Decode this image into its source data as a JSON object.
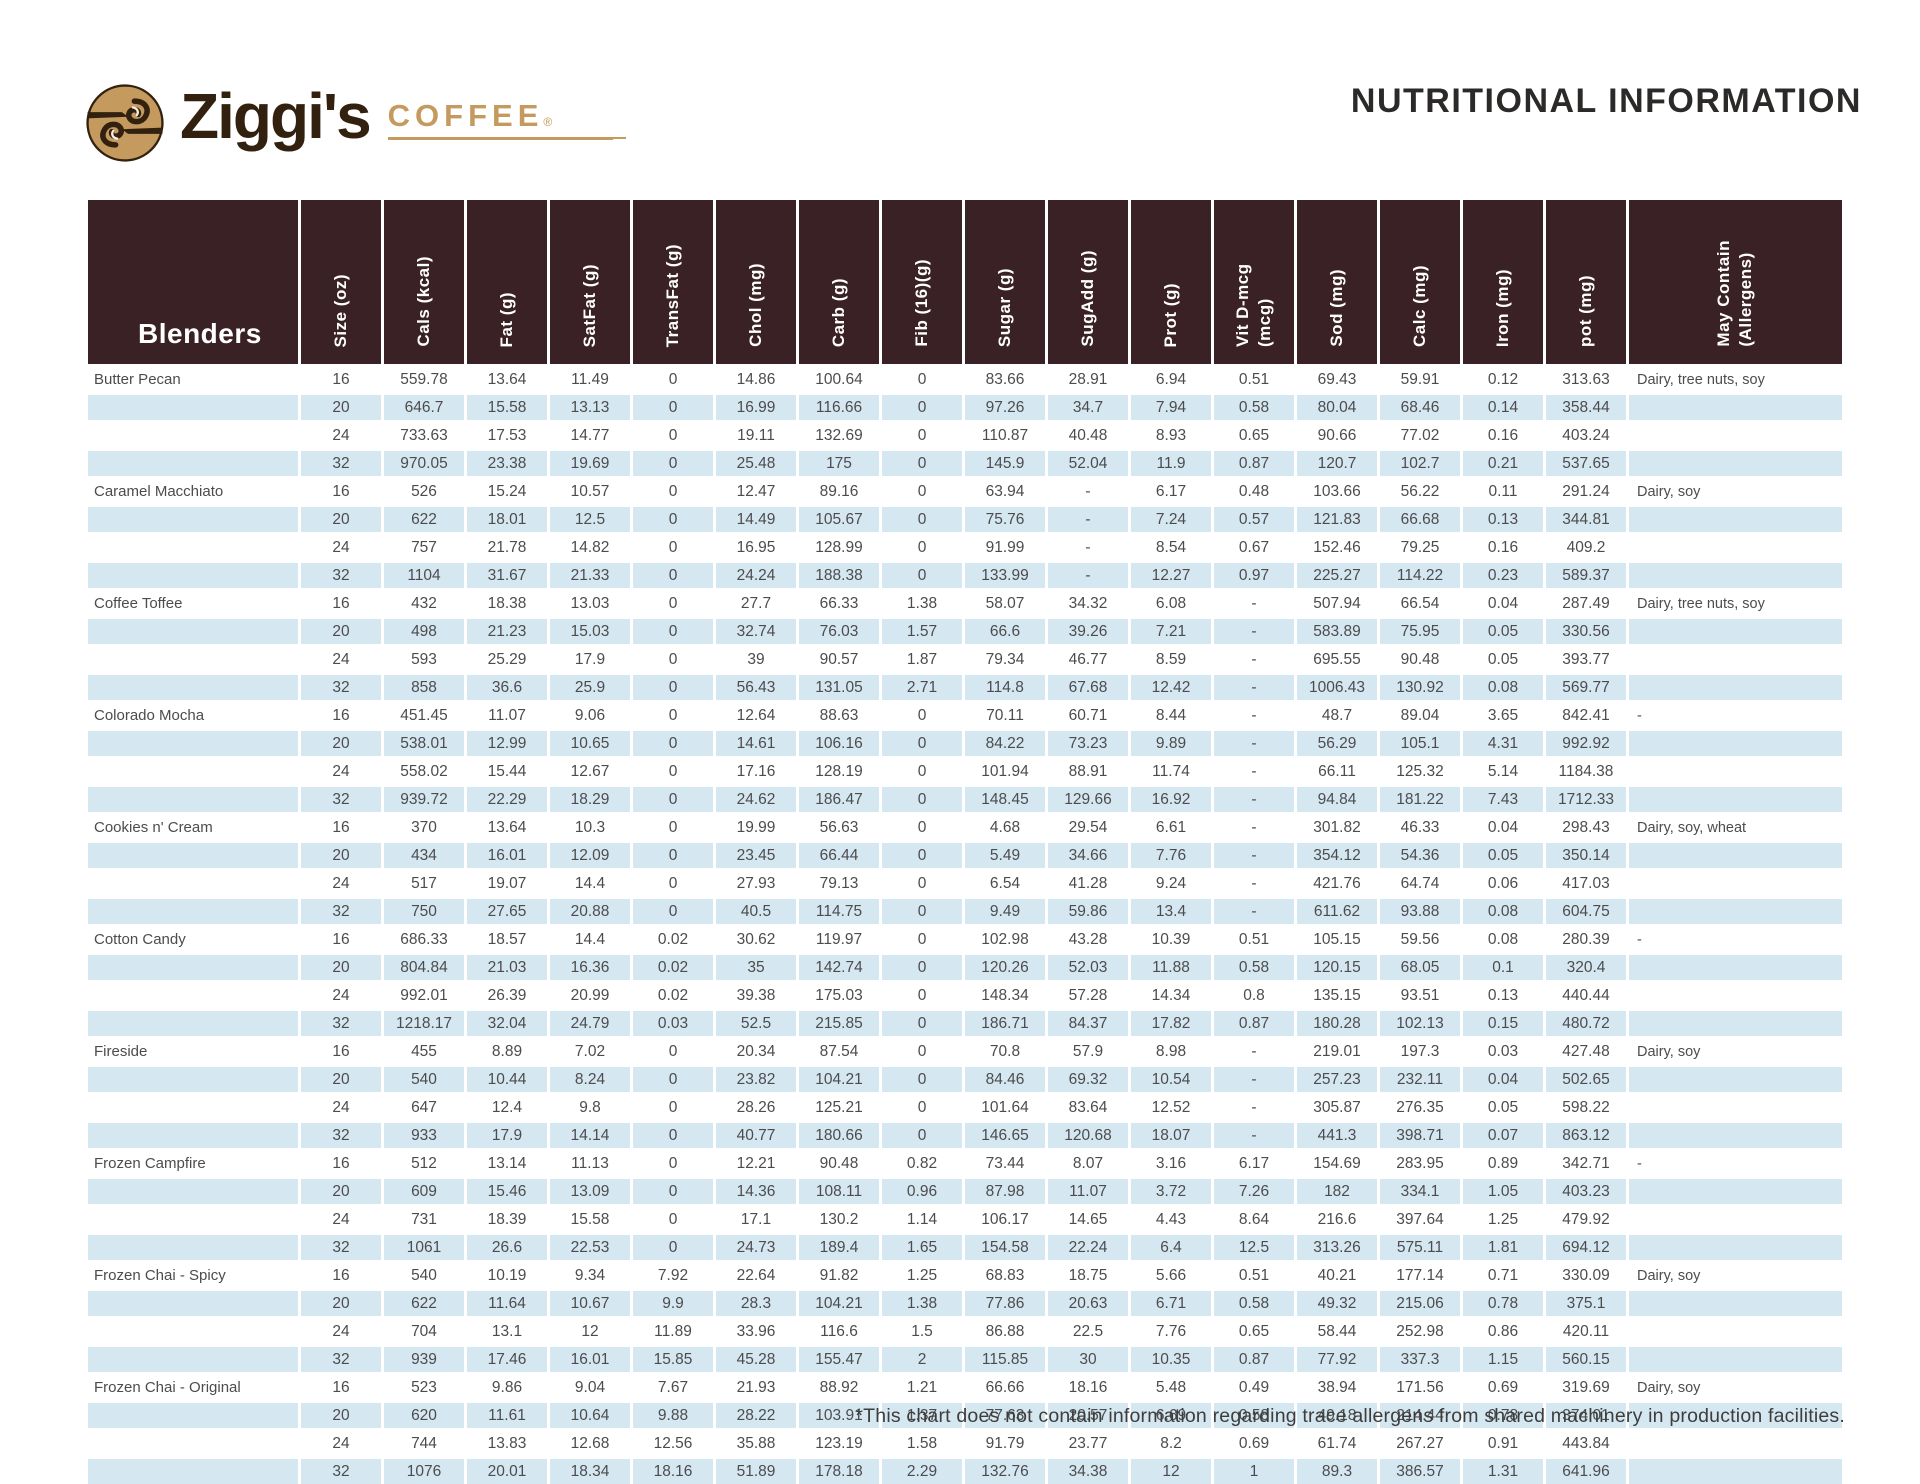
{
  "logo": {
    "brand": "Ziggi's",
    "sub": "COFFEE",
    "registered": "®"
  },
  "header": {
    "title": "NUTRITIONAL INFORMATION"
  },
  "colors": {
    "header_brown": "#3a2125",
    "row_blue": "#d5e7f0",
    "logo_gold": "#c49a5e",
    "logo_dark": "#33210f",
    "text_gray": "#4c4c4e"
  },
  "table": {
    "first_column_header": "Blenders",
    "columns": [
      "Size (oz)",
      "Cals (kcal)",
      "Fat (g)",
      "SatFat (g)",
      "TransFat (g)",
      "Chol (mg)",
      "Carb (g)",
      "Fib (16)(g)",
      "Sugar (g)",
      "SugAdd (g)",
      "Prot (g)",
      "Vit D-mcg (mcg)",
      "Sod (mg)",
      "Calc (mg)",
      "Iron (mg)",
      "pot (mg)",
      "May Contain\n(Allergens)"
    ],
    "products": [
      {
        "name": "Butter Pecan",
        "allergens": "Dairy, tree nuts, soy",
        "rows": [
          [
            "16",
            "559.78",
            "13.64",
            "11.49",
            "0",
            "14.86",
            "100.64",
            "0",
            "83.66",
            "28.91",
            "6.94",
            "0.51",
            "69.43",
            "59.91",
            "0.12",
            "313.63"
          ],
          [
            "20",
            "646.7",
            "15.58",
            "13.13",
            "0",
            "16.99",
            "116.66",
            "0",
            "97.26",
            "34.7",
            "7.94",
            "0.58",
            "80.04",
            "68.46",
            "0.14",
            "358.44"
          ],
          [
            "24",
            "733.63",
            "17.53",
            "14.77",
            "0",
            "19.11",
            "132.69",
            "0",
            "110.87",
            "40.48",
            "8.93",
            "0.65",
            "90.66",
            "77.02",
            "0.16",
            "403.24"
          ],
          [
            "32",
            "970.05",
            "23.38",
            "19.69",
            "0",
            "25.48",
            "175",
            "0",
            "145.9",
            "52.04",
            "11.9",
            "0.87",
            "120.7",
            "102.7",
            "0.21",
            "537.65"
          ]
        ]
      },
      {
        "name": "Caramel Macchiato",
        "allergens": "Dairy, soy",
        "rows": [
          [
            "16",
            "526",
            "15.24",
            "10.57",
            "0",
            "12.47",
            "89.16",
            "0",
            "63.94",
            "-",
            "6.17",
            "0.48",
            "103.66",
            "56.22",
            "0.11",
            "291.24"
          ],
          [
            "20",
            "622",
            "18.01",
            "12.5",
            "0",
            "14.49",
            "105.67",
            "0",
            "75.76",
            "-",
            "7.24",
            "0.57",
            "121.83",
            "66.68",
            "0.13",
            "344.81"
          ],
          [
            "24",
            "757",
            "21.78",
            "14.82",
            "0",
            "16.95",
            "128.99",
            "0",
            "91.99",
            "-",
            "8.54",
            "0.67",
            "152.46",
            "79.25",
            "0.16",
            "409.2"
          ],
          [
            "32",
            "1104",
            "31.67",
            "21.33",
            "0",
            "24.24",
            "188.38",
            "0",
            "133.99",
            "-",
            "12.27",
            "0.97",
            "225.27",
            "114.22",
            "0.23",
            "589.37"
          ]
        ]
      },
      {
        "name": "Coffee Toffee",
        "allergens": "Dairy, tree nuts, soy",
        "rows": [
          [
            "16",
            "432",
            "18.38",
            "13.03",
            "0",
            "27.7",
            "66.33",
            "1.38",
            "58.07",
            "34.32",
            "6.08",
            "-",
            "507.94",
            "66.54",
            "0.04",
            "287.49"
          ],
          [
            "20",
            "498",
            "21.23",
            "15.03",
            "0",
            "32.74",
            "76.03",
            "1.57",
            "66.6",
            "39.26",
            "7.21",
            "-",
            "583.89",
            "75.95",
            "0.05",
            "330.56"
          ],
          [
            "24",
            "593",
            "25.29",
            "17.9",
            "0",
            "39",
            "90.57",
            "1.87",
            "79.34",
            "46.77",
            "8.59",
            "-",
            "695.55",
            "90.48",
            "0.05",
            "393.77"
          ],
          [
            "32",
            "858",
            "36.6",
            "25.9",
            "0",
            "56.43",
            "131.05",
            "2.71",
            "114.8",
            "67.68",
            "12.42",
            "-",
            "1006.43",
            "130.92",
            "0.08",
            "569.77"
          ]
        ]
      },
      {
        "name": "Colorado Mocha",
        "allergens": "-",
        "rows": [
          [
            "16",
            "451.45",
            "11.07",
            "9.06",
            "0",
            "12.64",
            "88.63",
            "0",
            "70.11",
            "60.71",
            "8.44",
            "-",
            "48.7",
            "89.04",
            "3.65",
            "842.41"
          ],
          [
            "20",
            "538.01",
            "12.99",
            "10.65",
            "0",
            "14.61",
            "106.16",
            "0",
            "84.22",
            "73.23",
            "9.89",
            "-",
            "56.29",
            "105.1",
            "4.31",
            "992.92"
          ],
          [
            "24",
            "558.02",
            "15.44",
            "12.67",
            "0",
            "17.16",
            "128.19",
            "0",
            "101.94",
            "88.91",
            "11.74",
            "-",
            "66.11",
            "125.32",
            "5.14",
            "1184.38"
          ],
          [
            "32",
            "939.72",
            "22.29",
            "18.29",
            "0",
            "24.62",
            "186.47",
            "0",
            "148.45",
            "129.66",
            "16.92",
            "-",
            "94.84",
            "181.22",
            "7.43",
            "1712.33"
          ]
        ]
      },
      {
        "name": "Cookies n' Cream",
        "allergens": "Dairy, soy, wheat",
        "rows": [
          [
            "16",
            "370",
            "13.64",
            "10.3",
            "0",
            "19.99",
            "56.63",
            "0",
            "4.68",
            "29.54",
            "6.61",
            "-",
            "301.82",
            "46.33",
            "0.04",
            "298.43"
          ],
          [
            "20",
            "434",
            "16.01",
            "12.09",
            "0",
            "23.45",
            "66.44",
            "0",
            "5.49",
            "34.66",
            "7.76",
            "-",
            "354.12",
            "54.36",
            "0.05",
            "350.14"
          ],
          [
            "24",
            "517",
            "19.07",
            "14.4",
            "0",
            "27.93",
            "79.13",
            "0",
            "6.54",
            "41.28",
            "9.24",
            "-",
            "421.76",
            "64.74",
            "0.06",
            "417.03"
          ],
          [
            "32",
            "750",
            "27.65",
            "20.88",
            "0",
            "40.5",
            "114.75",
            "0",
            "9.49",
            "59.86",
            "13.4",
            "-",
            "611.62",
            "93.88",
            "0.08",
            "604.75"
          ]
        ]
      },
      {
        "name": "Cotton Candy",
        "allergens": "-",
        "rows": [
          [
            "16",
            "686.33",
            "18.57",
            "14.4",
            "0.02",
            "30.62",
            "119.97",
            "0",
            "102.98",
            "43.28",
            "10.39",
            "0.51",
            "105.15",
            "59.56",
            "0.08",
            "280.39"
          ],
          [
            "20",
            "804.84",
            "21.03",
            "16.36",
            "0.02",
            "35",
            "142.74",
            "0",
            "120.26",
            "52.03",
            "11.88",
            "0.58",
            "120.15",
            "68.05",
            "0.1",
            "320.4"
          ],
          [
            "24",
            "992.01",
            "26.39",
            "20.99",
            "0.02",
            "39.38",
            "175.03",
            "0",
            "148.34",
            "57.28",
            "14.34",
            "0.8",
            "135.15",
            "93.51",
            "0.13",
            "440.44"
          ],
          [
            "32",
            "1218.17",
            "32.04",
            "24.79",
            "0.03",
            "52.5",
            "215.85",
            "0",
            "186.71",
            "84.37",
            "17.82",
            "0.87",
            "180.28",
            "102.13",
            "0.15",
            "480.72"
          ]
        ]
      },
      {
        "name": "Fireside",
        "allergens": "Dairy, soy",
        "rows": [
          [
            "16",
            "455",
            "8.89",
            "7.02",
            "0",
            "20.34",
            "87.54",
            "0",
            "70.8",
            "57.9",
            "8.98",
            "-",
            "219.01",
            "197.3",
            "0.03",
            "427.48"
          ],
          [
            "20",
            "540",
            "10.44",
            "8.24",
            "0",
            "23.82",
            "104.21",
            "0",
            "84.46",
            "69.32",
            "10.54",
            "-",
            "257.23",
            "232.11",
            "0.04",
            "502.65"
          ],
          [
            "24",
            "647",
            "12.4",
            "9.8",
            "0",
            "28.26",
            "125.21",
            "0",
            "101.64",
            "83.64",
            "12.52",
            "-",
            "305.87",
            "276.35",
            "0.05",
            "598.22"
          ],
          [
            "32",
            "933",
            "17.9",
            "14.14",
            "0",
            "40.77",
            "180.66",
            "0",
            "146.65",
            "120.68",
            "18.07",
            "-",
            "441.3",
            "398.71",
            "0.07",
            "863.12"
          ]
        ]
      },
      {
        "name": "Frozen Campfire",
        "allergens": "-",
        "rows": [
          [
            "16",
            "512",
            "13.14",
            "11.13",
            "0",
            "12.21",
            "90.48",
            "0.82",
            "73.44",
            "8.07",
            "3.16",
            "6.17",
            "154.69",
            "283.95",
            "0.89",
            "342.71"
          ],
          [
            "20",
            "609",
            "15.46",
            "13.09",
            "0",
            "14.36",
            "108.11",
            "0.96",
            "87.98",
            "11.07",
            "3.72",
            "7.26",
            "182",
            "334.1",
            "1.05",
            "403.23"
          ],
          [
            "24",
            "731",
            "18.39",
            "15.58",
            "0",
            "17.1",
            "130.2",
            "1.14",
            "106.17",
            "14.65",
            "4.43",
            "8.64",
            "216.6",
            "397.64",
            "1.25",
            "479.92"
          ],
          [
            "32",
            "1061",
            "26.6",
            "22.53",
            "0",
            "24.73",
            "189.4",
            "1.65",
            "154.58",
            "22.24",
            "6.4",
            "12.5",
            "313.26",
            "575.11",
            "1.81",
            "694.12"
          ]
        ]
      },
      {
        "name": "Frozen Chai - Spicy",
        "allergens": "Dairy, soy",
        "rows": [
          [
            "16",
            "540",
            "10.19",
            "9.34",
            "7.92",
            "22.64",
            "91.82",
            "1.25",
            "68.83",
            "18.75",
            "5.66",
            "0.51",
            "40.21",
            "177.14",
            "0.71",
            "330.09"
          ],
          [
            "20",
            "622",
            "11.64",
            "10.67",
            "9.9",
            "28.3",
            "104.21",
            "1.38",
            "77.86",
            "20.63",
            "6.71",
            "0.58",
            "49.32",
            "215.06",
            "0.78",
            "375.1"
          ],
          [
            "24",
            "704",
            "13.1",
            "12",
            "11.89",
            "33.96",
            "116.6",
            "1.5",
            "86.88",
            "22.5",
            "7.76",
            "0.65",
            "58.44",
            "252.98",
            "0.86",
            "420.11"
          ],
          [
            "32",
            "939",
            "17.46",
            "16.01",
            "15.85",
            "45.28",
            "155.47",
            "2",
            "115.85",
            "30",
            "10.35",
            "0.87",
            "77.92",
            "337.3",
            "1.15",
            "560.15"
          ]
        ]
      },
      {
        "name": "Frozen Chai - Original",
        "allergens": "Dairy, soy",
        "rows": [
          [
            "16",
            "523",
            "9.86",
            "9.04",
            "7.67",
            "21.93",
            "88.92",
            "1.21",
            "66.66",
            "18.16",
            "5.48",
            "0.49",
            "38.94",
            "171.56",
            "0.69",
            "319.69"
          ],
          [
            "20",
            "620",
            "11.61",
            "10.64",
            "9.88",
            "28.22",
            "103.91",
            "1.37",
            "77.63",
            "20.57",
            "6.69",
            "0.58",
            "49.18",
            "214.44",
            "0.78",
            "374.01"
          ],
          [
            "24",
            "744",
            "13.83",
            "12.68",
            "12.56",
            "35.88",
            "123.19",
            "1.58",
            "91.79",
            "23.77",
            "8.2",
            "0.69",
            "61.74",
            "267.27",
            "0.91",
            "443.84"
          ],
          [
            "32",
            "1076",
            "20.01",
            "18.34",
            "18.16",
            "51.89",
            "178.18",
            "2.29",
            "132.76",
            "34.38",
            "12",
            "1",
            "89.3",
            "386.57",
            "1.31",
            "641.96"
          ]
        ]
      }
    ]
  },
  "footnote": "*This chart does not contain information regarding trace allergens from shared machinery in production facilities."
}
